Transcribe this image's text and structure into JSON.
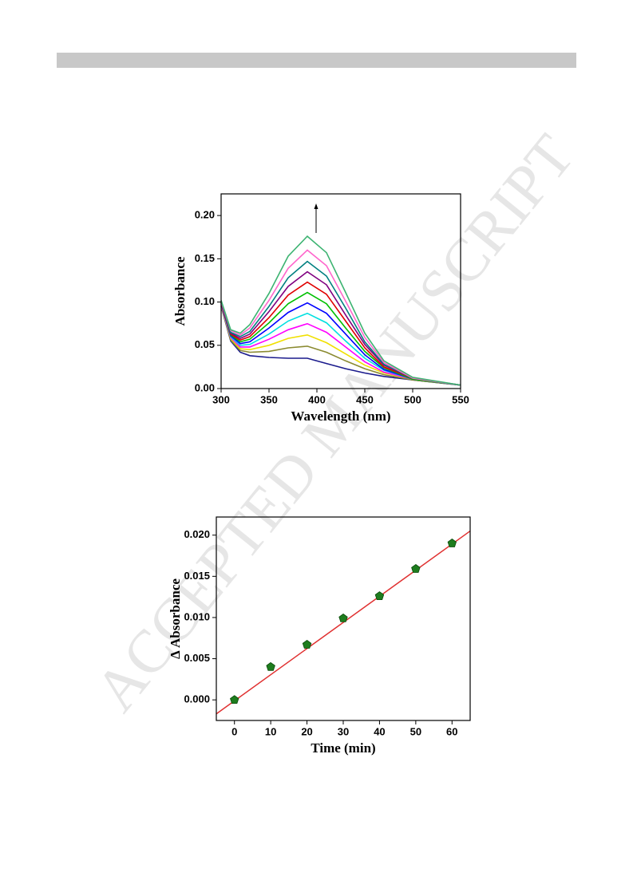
{
  "watermark": "ACCEPTED MANUSCRIPT",
  "chart_data": [
    {
      "type": "line",
      "xlabel": "Wavelength (nm)",
      "ylabel": "Absorbance",
      "x": [
        300,
        310,
        320,
        330,
        350,
        370,
        390,
        410,
        430,
        450,
        470,
        500,
        550
      ],
      "xlim": [
        300,
        550
      ],
      "xticks": [
        300,
        350,
        400,
        450,
        500,
        550
      ],
      "ylim": [
        0,
        0.225
      ],
      "yticks": [
        {
          "value": 0,
          "label": "0.00"
        },
        0.05,
        {
          "value": 0.1,
          "label": "0.10"
        },
        0.15,
        {
          "value": 0.2,
          "label": "0.20"
        }
      ],
      "series": [
        {
          "color": "#1a1a8c",
          "values": [
            0.095,
            0.055,
            0.042,
            0.038,
            0.036,
            0.035,
            0.035,
            0.029,
            0.023,
            0.018,
            0.014,
            0.01,
            0.004
          ]
        },
        {
          "color": "#8a8a30",
          "values": [
            0.096,
            0.056,
            0.044,
            0.042,
            0.043,
            0.047,
            0.049,
            0.042,
            0.032,
            0.023,
            0.016,
            0.01,
            0.004
          ]
        },
        {
          "color": "#f0e000",
          "values": [
            0.096,
            0.058,
            0.046,
            0.045,
            0.05,
            0.058,
            0.062,
            0.053,
            0.04,
            0.027,
            0.018,
            0.011,
            0.004
          ]
        },
        {
          "color": "#ff00ff",
          "values": [
            0.097,
            0.059,
            0.048,
            0.048,
            0.057,
            0.068,
            0.075,
            0.065,
            0.048,
            0.031,
            0.019,
            0.011,
            0.004
          ]
        },
        {
          "color": "#00e0e0",
          "values": [
            0.098,
            0.06,
            0.05,
            0.051,
            0.063,
            0.078,
            0.087,
            0.076,
            0.055,
            0.035,
            0.021,
            0.011,
            0.004
          ]
        },
        {
          "color": "#0000ff",
          "values": [
            0.098,
            0.061,
            0.052,
            0.054,
            0.07,
            0.088,
            0.099,
            0.087,
            0.063,
            0.039,
            0.022,
            0.011,
            0.004
          ]
        },
        {
          "color": "#00c000",
          "values": [
            0.099,
            0.062,
            0.054,
            0.057,
            0.076,
            0.098,
            0.111,
            0.098,
            0.07,
            0.043,
            0.024,
            0.011,
            0.004
          ]
        },
        {
          "color": "#e00000",
          "values": [
            0.099,
            0.063,
            0.056,
            0.06,
            0.082,
            0.108,
            0.123,
            0.109,
            0.078,
            0.047,
            0.025,
            0.012,
            0.004
          ]
        },
        {
          "color": "#800080",
          "values": [
            0.1,
            0.064,
            0.058,
            0.063,
            0.089,
            0.118,
            0.135,
            0.12,
            0.085,
            0.051,
            0.027,
            0.012,
            0.004
          ]
        },
        {
          "color": "#008080",
          "values": [
            0.101,
            0.065,
            0.06,
            0.066,
            0.095,
            0.128,
            0.147,
            0.13,
            0.093,
            0.054,
            0.028,
            0.012,
            0.004
          ]
        },
        {
          "color": "#ff66cc",
          "values": [
            0.101,
            0.067,
            0.062,
            0.07,
            0.102,
            0.139,
            0.16,
            0.142,
            0.101,
            0.059,
            0.03,
            0.012,
            0.004
          ]
        },
        {
          "color": "#3cb371",
          "values": [
            0.102,
            0.068,
            0.064,
            0.074,
            0.11,
            0.153,
            0.176,
            0.157,
            0.111,
            0.064,
            0.032,
            0.013,
            0.004
          ]
        }
      ]
    },
    {
      "type": "scatter",
      "xlabel": "Time (min)",
      "ylabel": "Δ Absorbance",
      "x": [
        0,
        10,
        20,
        30,
        40,
        50,
        60
      ],
      "xlim": [
        -5,
        65
      ],
      "xticks": [
        0,
        10,
        20,
        30,
        40,
        50,
        60
      ],
      "ylim": [
        -0.0025,
        0.0222
      ],
      "yticks": [
        {
          "value": 0,
          "label": "0.000"
        },
        0.005,
        {
          "value": 0.01,
          "label": "0.010"
        },
        0.015,
        {
          "value": 0.02,
          "label": "0.020"
        }
      ],
      "series": [
        {
          "color": "#1e7d1e",
          "values": [
            0.0,
            0.004,
            0.0067,
            0.0099,
            0.0126,
            0.0159,
            0.019
          ]
        }
      ],
      "fit_line": {
        "color": "#e03030",
        "x": [
          -5,
          65
        ],
        "y": [
          -0.0017,
          0.0205
        ]
      }
    }
  ]
}
